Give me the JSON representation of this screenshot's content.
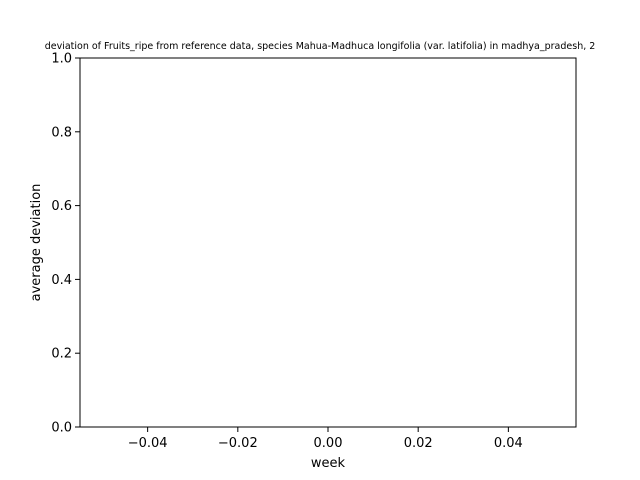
{
  "chart_data": {
    "type": "line",
    "title": "deviation of Fruits_ripe from reference data, species Mahua-Madhuca longifolia (var. latifolia) in madhya_pradesh, 2",
    "xlabel": "week",
    "ylabel": "average deviation",
    "xlim": [
      -0.055,
      0.055
    ],
    "ylim": [
      0,
      1
    ],
    "xticks": [
      "−0.04",
      "−0.02",
      "0.00",
      "0.02",
      "0.04"
    ],
    "xtick_values": [
      -0.04,
      -0.02,
      0,
      0.02,
      0.04
    ],
    "yticks": [
      "0.0",
      "0.2",
      "0.4",
      "0.6",
      "0.8",
      "1.0"
    ],
    "ytick_values": [
      0,
      0.2,
      0.4,
      0.6,
      0.8,
      1.0
    ],
    "grid": false,
    "series": []
  }
}
